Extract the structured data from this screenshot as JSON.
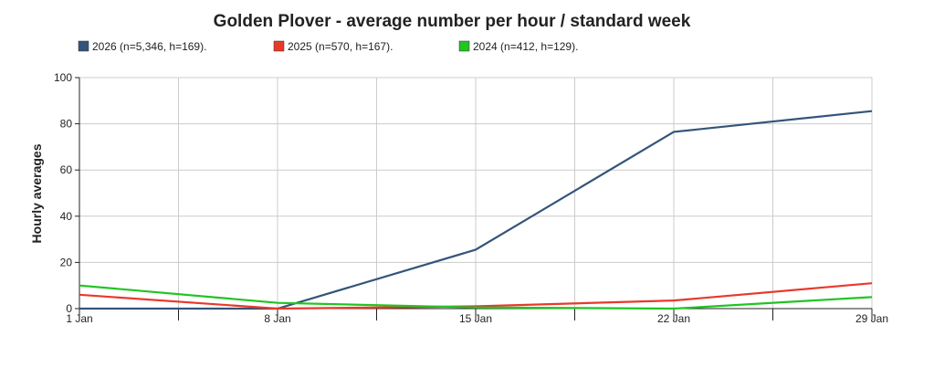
{
  "chart_data": {
    "type": "line",
    "title": "Golden Plover - average number per hour / standard week",
    "y_label": "Hourly averages",
    "categories": [
      "1 Jan",
      "8 Jan",
      "15 Jan",
      "22 Jan",
      "29 Jan"
    ],
    "series": [
      {
        "name": "2026 (n=5,346, h=169).",
        "color": "#34557a",
        "values": [
          0,
          0,
          25.5,
          76.5,
          85.5
        ]
      },
      {
        "name": "2025 (n=570, h=167).",
        "color": "#e8392b",
        "values": [
          6,
          0,
          1,
          3.5,
          11
        ]
      },
      {
        "name": "2024 (n=412, h=129).",
        "color": "#22c422",
        "values": [
          10,
          2.5,
          0.5,
          0,
          5
        ]
      }
    ],
    "ylim": [
      0,
      100
    ],
    "yticks": [
      0,
      20,
      40,
      60,
      80,
      100
    ],
    "grid": true
  }
}
